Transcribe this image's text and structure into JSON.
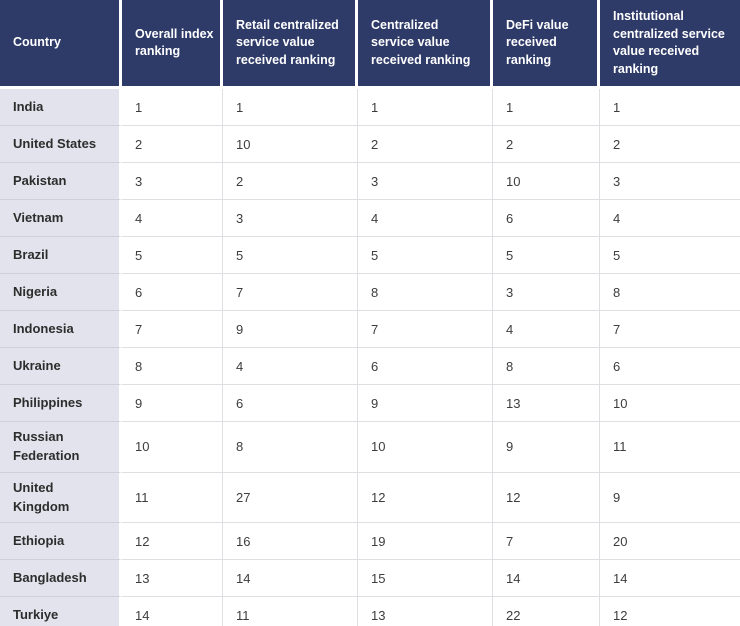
{
  "colors": {
    "header_bg": "#2e3a68",
    "header_text": "#ffffff",
    "country_column_bg": "#e2e3ec",
    "row_divider": "#dfdfe3",
    "country_divider": "#cfd0db",
    "body_text": "#3d3d3d",
    "country_text": "#2d2d2d"
  },
  "chart_data": {
    "type": "table",
    "columns": [
      "Country",
      "Overall index ranking",
      "Retail centralized service value received ranking",
      "Centralized service value received ranking",
      "DeFi value received ranking",
      "Institutional centralized service value received ranking"
    ],
    "rows": [
      [
        "India",
        "1",
        "1",
        "1",
        "1",
        "1"
      ],
      [
        "United States",
        "2",
        "10",
        "2",
        "2",
        "2"
      ],
      [
        "Pakistan",
        "3",
        "2",
        "3",
        "10",
        "3"
      ],
      [
        "Vietnam",
        "4",
        "3",
        "4",
        "6",
        "4"
      ],
      [
        "Brazil",
        "5",
        "5",
        "5",
        "5",
        "5"
      ],
      [
        "Nigeria",
        "6",
        "7",
        "8",
        "3",
        "8"
      ],
      [
        "Indonesia",
        "7",
        "9",
        "7",
        "4",
        "7"
      ],
      [
        "Ukraine",
        "8",
        "4",
        "6",
        "8",
        "6"
      ],
      [
        "Philippines",
        "9",
        "6",
        "9",
        "13",
        "10"
      ],
      [
        "Russian Federation",
        "10",
        "8",
        "10",
        "9",
        "11"
      ],
      [
        "United Kingdom",
        "11",
        "27",
        "12",
        "12",
        "9"
      ],
      [
        "Ethiopia",
        "12",
        "16",
        "19",
        "7",
        "20"
      ],
      [
        "Bangladesh",
        "13",
        "14",
        "15",
        "14",
        "14"
      ],
      [
        "Turkiye",
        "14",
        "11",
        "13",
        "22",
        "12"
      ]
    ]
  }
}
